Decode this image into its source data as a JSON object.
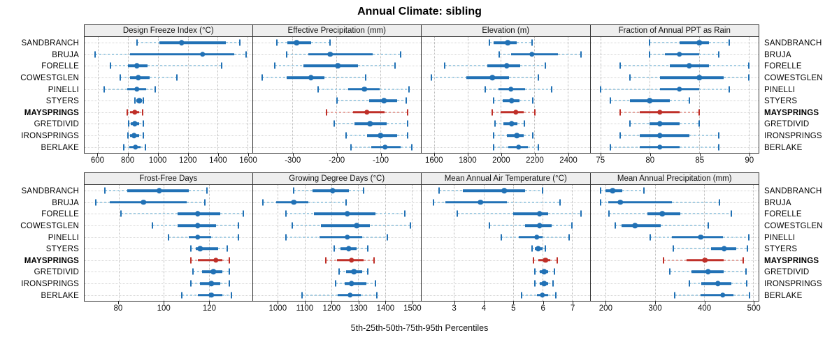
{
  "title": "Annual Climate: sibling",
  "caption": "5th-25th-50th-75th-95th Percentiles",
  "sites": [
    "SANDBRANCH",
    "BRUJA",
    "FORELLE",
    "COWESTGLEN",
    "PINELLI",
    "STYERS",
    "MAYSPRINGS",
    "GRETDIVID",
    "IRONSPRINGS",
    "BERLAKE"
  ],
  "highlight_site": "MAYSPRINGS",
  "colors": {
    "blue": "#2171b5",
    "blue_light": "#a6cee3",
    "red": "#bf2f28",
    "red_light": "#e5a6a0",
    "grid": "#c4c4c4",
    "strip_bg": "#eeeeee",
    "border": "#333333"
  },
  "chart_data": {
    "type": "dotplot-percentiles",
    "note": "Each row shows 5th-25th-50th-75th-95th percentile whiskers per site; MAYSPRINGS highlighted red",
    "percentiles": [
      "p5",
      "p25",
      "p50",
      "p75",
      "p95"
    ],
    "rows": [
      "SANDBRANCH",
      "BRUJA",
      "FORELLE",
      "COWESTGLEN",
      "PINELLI",
      "STYERS",
      "MAYSPRINGS",
      "GRETDIVID",
      "IRONSPRINGS",
      "BERLAKE"
    ],
    "panels": [
      {
        "title": "Design Freeze Index (°C)",
        "grid_row": "top",
        "axis": {
          "min": 510,
          "max": 1630,
          "ticks": [
            600,
            800,
            1000,
            1200,
            1400,
            1600
          ]
        },
        "values": [
          [
            860,
            1010,
            1160,
            1455,
            1550
          ],
          [
            580,
            815,
            1300,
            1510,
            1590
          ],
          [
            685,
            800,
            860,
            930,
            1425
          ],
          [
            750,
            815,
            870,
            945,
            1125
          ],
          [
            640,
            795,
            860,
            920,
            980
          ],
          [
            845,
            855,
            875,
            895,
            905
          ],
          [
            795,
            815,
            845,
            875,
            900
          ],
          [
            805,
            820,
            845,
            875,
            905
          ],
          [
            800,
            815,
            840,
            875,
            905
          ],
          [
            770,
            810,
            850,
            885,
            915
          ]
        ]
      },
      {
        "title": "Effective Precipitation (mm)",
        "grid_row": "top",
        "axis": {
          "min": -391,
          "max": -7,
          "ticks": [
            -300,
            -200,
            -100
          ]
        },
        "values": [
          [
            -336,
            -312,
            -291,
            -258,
            -214
          ],
          [
            -313,
            -264,
            -214,
            -117,
            -54
          ],
          [
            -341,
            -276,
            -197,
            -151,
            -66
          ],
          [
            -369,
            -314,
            -258,
            -228,
            -133
          ],
          [
            -242,
            -173,
            -136,
            -101,
            -34
          ],
          [
            -198,
            -125,
            -91,
            -61,
            -41
          ],
          [
            -222,
            -162,
            -130,
            -90,
            -38
          ],
          [
            -205,
            -158,
            -123,
            -86,
            -38
          ],
          [
            -178,
            -130,
            -99,
            -61,
            -38
          ],
          [
            -166,
            -121,
            -89,
            -54,
            -27
          ]
        ]
      },
      {
        "title": "Elevation (m)",
        "grid_row": "top",
        "axis": {
          "min": 1526,
          "max": 2531,
          "ticks": [
            1600,
            1800,
            2000,
            2200,
            2400
          ]
        },
        "values": [
          [
            1930,
            1955,
            2040,
            2095,
            2185
          ],
          [
            1990,
            2060,
            2185,
            2340,
            2480
          ],
          [
            1665,
            1920,
            2035,
            2115,
            2265
          ],
          [
            1585,
            1795,
            1950,
            2050,
            2225
          ],
          [
            1905,
            1985,
            2060,
            2145,
            2305
          ],
          [
            1955,
            2010,
            2065,
            2110,
            2190
          ],
          [
            1950,
            2000,
            2090,
            2135,
            2205
          ],
          [
            1965,
            2015,
            2065,
            2100,
            2140
          ],
          [
            1955,
            2035,
            2095,
            2135,
            2190
          ],
          [
            1955,
            2045,
            2105,
            2160,
            2225
          ]
        ]
      },
      {
        "title": "Fraction of Annual PPT as Rain",
        "grid_row": "top",
        "axis": {
          "min": 74,
          "max": 91,
          "ticks": [
            75,
            80,
            85,
            90
          ]
        },
        "values": [
          [
            80,
            83,
            85,
            86,
            88
          ],
          [
            80,
            81.5,
            83,
            85,
            87
          ],
          [
            77,
            82,
            84,
            86,
            90
          ],
          [
            78,
            81,
            85,
            87.5,
            90
          ],
          [
            75,
            81,
            83,
            85,
            88
          ],
          [
            76,
            78,
            80,
            82,
            84
          ],
          [
            77,
            79,
            81,
            83,
            85
          ],
          [
            78,
            80,
            81,
            83,
            85
          ],
          [
            77,
            79,
            81,
            84,
            87
          ],
          [
            76,
            79,
            81,
            83,
            87
          ]
        ]
      },
      {
        "title": "Frost-Free Days",
        "grid_row": "bottom",
        "axis": {
          "min": 65,
          "max": 139,
          "ticks": [
            80,
            100,
            120
          ]
        },
        "values": [
          [
            74,
            84,
            98,
            111,
            119
          ],
          [
            70,
            76,
            91,
            110,
            118
          ],
          [
            81,
            106,
            115,
            125,
            135
          ],
          [
            95,
            106,
            115,
            123,
            133
          ],
          [
            102,
            111,
            115,
            121,
            133
          ],
          [
            112,
            114,
            116,
            124,
            128
          ],
          [
            112,
            115,
            123,
            126,
            129
          ],
          [
            113,
            117,
            122,
            126,
            129
          ],
          [
            112,
            116,
            121,
            125,
            129
          ],
          [
            108,
            115,
            121,
            126,
            130
          ]
        ]
      },
      {
        "title": "Growing Degree Days (°C)",
        "grid_row": "bottom",
        "axis": {
          "min": 907,
          "max": 1534,
          "ticks": [
            1000,
            1100,
            1200,
            1300,
            1400,
            1500
          ]
        },
        "values": [
          [
            1060,
            1130,
            1205,
            1265,
            1320
          ],
          [
            945,
            995,
            1060,
            1115,
            1255
          ],
          [
            1030,
            1135,
            1260,
            1365,
            1475
          ],
          [
            1055,
            1160,
            1295,
            1345,
            1495
          ],
          [
            1030,
            1155,
            1260,
            1315,
            1410
          ],
          [
            1210,
            1235,
            1265,
            1295,
            1335
          ],
          [
            1180,
            1220,
            1275,
            1320,
            1360
          ],
          [
            1230,
            1255,
            1285,
            1315,
            1335
          ],
          [
            1215,
            1250,
            1275,
            1330,
            1365
          ],
          [
            1090,
            1225,
            1270,
            1310,
            1370
          ]
        ]
      },
      {
        "title": "Mean Annual Air Temperature (°C)",
        "grid_row": "bottom",
        "axis": {
          "min": 1.9,
          "max": 7.6,
          "ticks": [
            3,
            4,
            5,
            6,
            7
          ]
        },
        "values": [
          [
            2.5,
            3.3,
            4.7,
            5.4,
            6.0
          ],
          [
            2.3,
            2.7,
            3.9,
            4.8,
            6.6
          ],
          [
            3.1,
            5.0,
            5.9,
            6.2,
            7.3
          ],
          [
            4.2,
            5.4,
            5.9,
            6.3,
            7.0
          ],
          [
            4.6,
            5.2,
            5.8,
            6.0,
            6.9
          ],
          [
            5.65,
            5.75,
            5.85,
            6.0,
            6.1
          ],
          [
            5.7,
            5.85,
            6.1,
            6.25,
            6.5
          ],
          [
            5.75,
            5.9,
            6.05,
            6.2,
            6.4
          ],
          [
            5.75,
            5.9,
            6.05,
            6.2,
            6.35
          ],
          [
            5.3,
            5.8,
            6.0,
            6.2,
            6.45
          ]
        ]
      },
      {
        "title": "Mean Annual Precipitation (mm)",
        "grid_row": "bottom",
        "axis": {
          "min": 169,
          "max": 511,
          "ticks": [
            200,
            300,
            400,
            500
          ]
        },
        "values": [
          [
            190,
            200,
            214,
            233,
            278
          ],
          [
            190,
            205,
            230,
            335,
            432
          ],
          [
            207,
            285,
            315,
            352,
            455
          ],
          [
            220,
            232,
            260,
            312,
            408
          ],
          [
            290,
            335,
            393,
            438,
            491
          ],
          [
            338,
            415,
            441,
            465,
            488
          ],
          [
            317,
            365,
            402,
            440,
            480
          ],
          [
            330,
            375,
            408,
            440,
            485
          ],
          [
            370,
            395,
            428,
            455,
            487
          ],
          [
            340,
            393,
            438,
            460,
            492
          ]
        ]
      }
    ]
  }
}
